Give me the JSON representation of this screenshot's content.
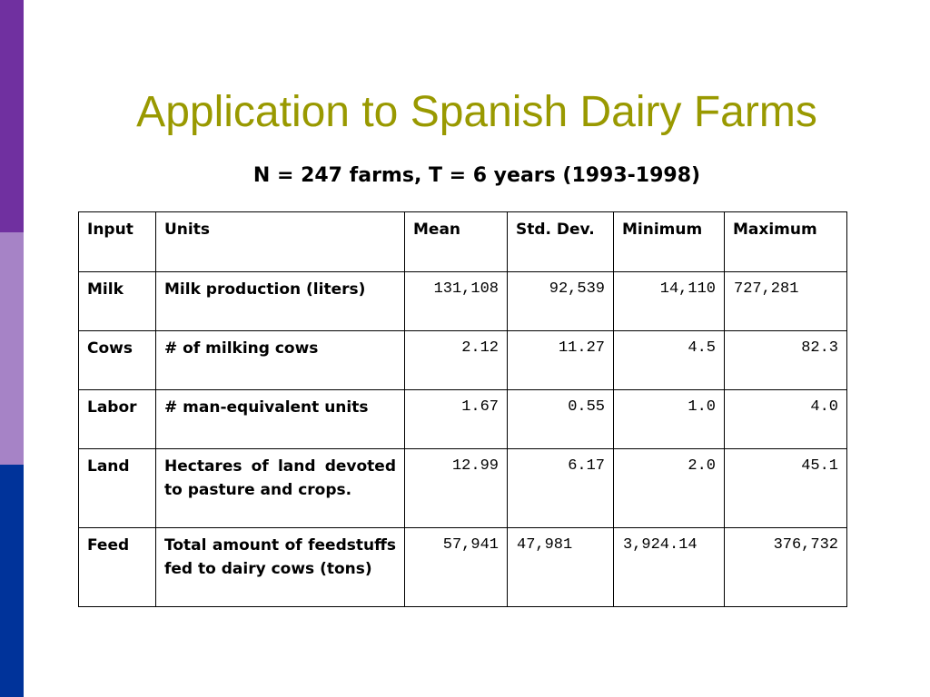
{
  "slide": {
    "title": "Application to Spanish Dairy Farms",
    "subtitle": "N = 247 farms, T = 6 years (1993-1998)",
    "colors": {
      "title": "#999900",
      "bar_top": "#7030a0",
      "bar_mid": "#a683c6",
      "bar_bottom": "#00339a"
    }
  },
  "table": {
    "headers": [
      "Input",
      "Units",
      "Mean",
      "Std. Dev.",
      "Minimum",
      "Maximum"
    ],
    "rows": [
      {
        "input": "Milk",
        "units": "Milk production (liters)",
        "mean": "131,108",
        "std": "92,539",
        "min": "14,110",
        "max": "727,281"
      },
      {
        "input": "Cows",
        "units": "# of milking cows",
        "mean": "2.12",
        "std": "11.27",
        "min": "4.5",
        "max": "82.3"
      },
      {
        "input": "Labor",
        "units": "# man-equivalent units",
        "mean": "1.67",
        "std": "0.55",
        "min": "1.0",
        "max": "4.0"
      },
      {
        "input": "Land",
        "units": "Hectares of land devoted to pasture and crops.",
        "mean": "12.99",
        "std": "6.17",
        "min": "2.0",
        "max": "45.1"
      },
      {
        "input": "Feed",
        "units": "Total amount of feedstuffs fed to dairy cows (tons)",
        "mean": "57,941",
        "std": "47,981",
        "min": "3,924.14",
        "max": "376,732"
      }
    ]
  }
}
